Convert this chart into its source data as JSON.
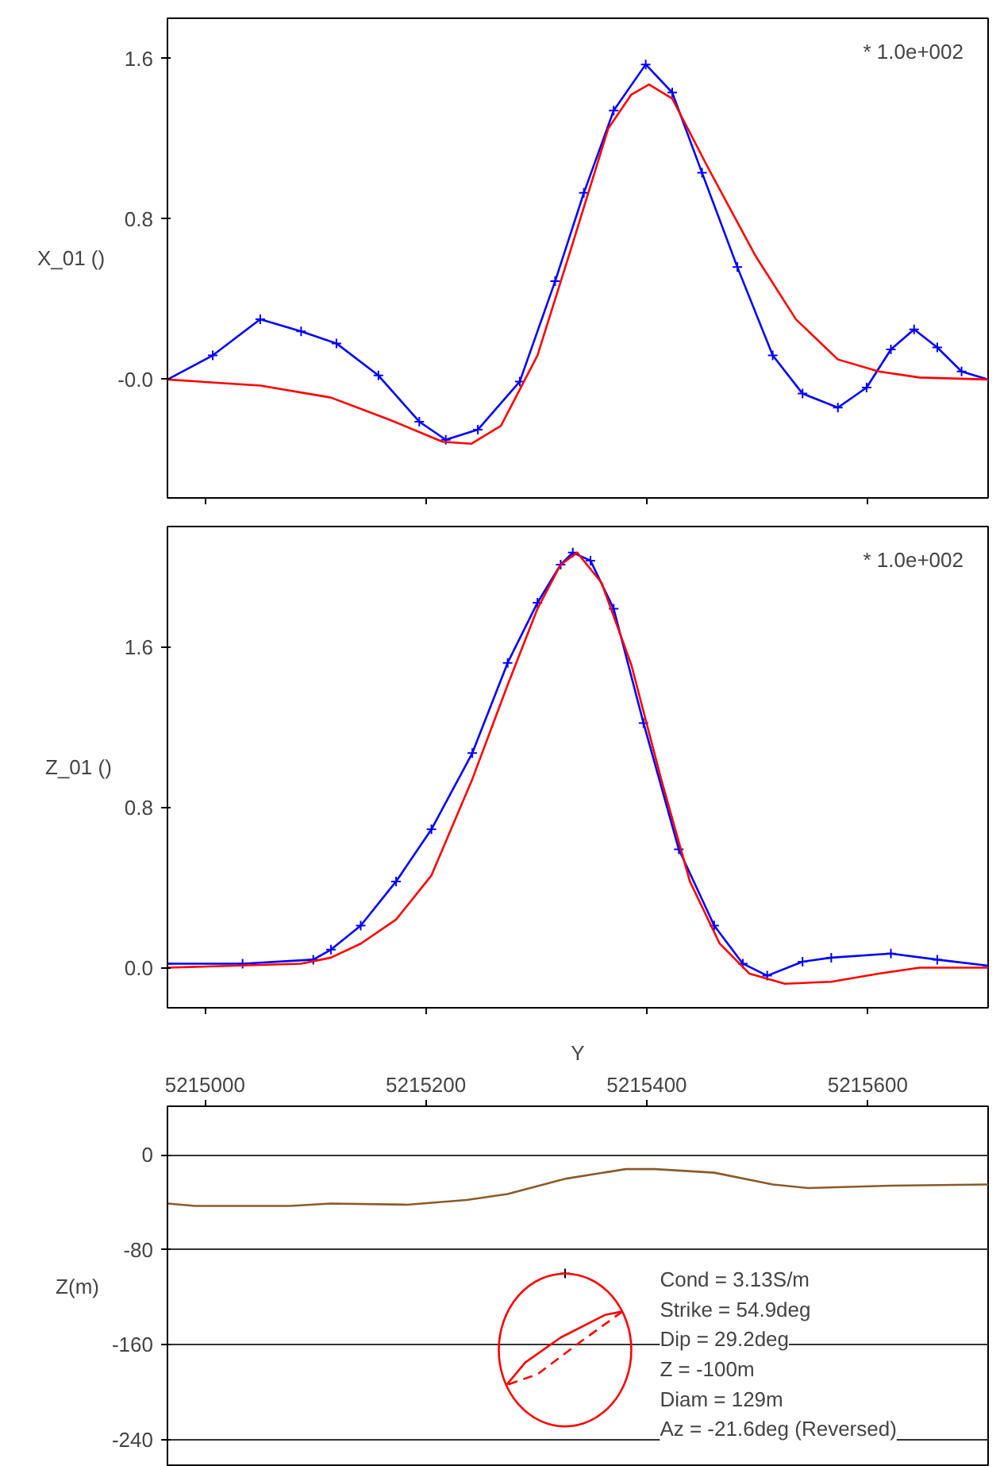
{
  "chart_data": [
    {
      "type": "line",
      "ylabel": "X_01 ()",
      "annotations": [
        "* 1.0e+002"
      ],
      "xlim": [
        5214966,
        5215709
      ],
      "xticks": [
        5215000,
        5215200,
        5215400,
        5215600
      ],
      "ylim": [
        -0.59,
        1.8
      ],
      "yticks": [
        {
          "value": 0,
          "label": "-0.0"
        },
        0.8,
        1.6
      ],
      "tick_labels": "y",
      "series": [
        {
          "color": "#0000ff",
          "marker": "cross",
          "x": [
            5214966,
            5215007,
            5215050,
            5215087,
            5215119,
            5215157,
            5215194,
            5215218,
            5215247,
            5215285,
            5215317,
            5215343,
            5215370,
            5215399,
            5215423,
            5215450,
            5215482,
            5215514,
            5215541,
            5215573,
            5215599,
            5215621,
            5215642,
            5215663,
            5215685,
            5215709
          ],
          "values": [
            0,
            0.12,
            0.3,
            0.24,
            0.18,
            0.02,
            -0.21,
            -0.3,
            -0.25,
            -0.01,
            0.49,
            0.93,
            1.34,
            1.57,
            1.43,
            1.03,
            0.56,
            0.12,
            -0.07,
            -0.14,
            -0.04,
            0.15,
            0.25,
            0.16,
            0.04,
            0
          ]
        },
        {
          "color": "#ff0000",
          "x": [
            5214966,
            5215050,
            5215114,
            5215167,
            5215215,
            5215241,
            5215268,
            5215301,
            5215333,
            5215365,
            5215386,
            5215402,
            5215423,
            5215455,
            5215498,
            5215535,
            5215573,
            5215610,
            5215647,
            5215709
          ],
          "values": [
            0,
            -0.03,
            -0.09,
            -0.2,
            -0.31,
            -0.32,
            -0.23,
            0.12,
            0.68,
            1.25,
            1.42,
            1.47,
            1.4,
            1.06,
            0.62,
            0.3,
            0.1,
            0.04,
            0.01,
            0
          ]
        }
      ]
    },
    {
      "type": "line",
      "ylabel": "Z_01 ()",
      "annotations": [
        "* 1.0e+002"
      ],
      "xlim": [
        5214966,
        5215709
      ],
      "xticks": [
        5215000,
        5215200,
        5215400,
        5215600
      ],
      "ylim": [
        -0.2,
        2.2
      ],
      "yticks": [
        {
          "value": 0,
          "label": "0.0"
        },
        0.8,
        1.6
      ],
      "tick_labels": "y",
      "series": [
        {
          "color": "#0000ff",
          "marker": "cross",
          "x": [
            5214966,
            5215034,
            5215098,
            5215114,
            5215141,
            5215173,
            5215205,
            5215242,
            5215274,
            5215301,
            5215322,
            5215333,
            5215349,
            5215370,
            5215397,
            5215429,
            5215461,
            5215487,
            5215509,
            5215541,
            5215567,
            5215621,
            5215663,
            5215709
          ],
          "values": [
            0.02,
            0.02,
            0.04,
            0.09,
            0.21,
            0.43,
            0.69,
            1.07,
            1.52,
            1.82,
            2.01,
            2.07,
            2.03,
            1.79,
            1.22,
            0.59,
            0.21,
            0.02,
            -0.04,
            0.03,
            0.05,
            0.07,
            0.04,
            0.01
          ]
        },
        {
          "color": "#ff0000",
          "x": [
            5214966,
            5215087,
            5215114,
            5215141,
            5215173,
            5215205,
            5215242,
            5215274,
            5215301,
            5215322,
            5215337,
            5215359,
            5215386,
            5215413,
            5215439,
            5215466,
            5215493,
            5215525,
            5215567,
            5215610,
            5215647,
            5215709
          ],
          "values": [
            0,
            0.02,
            0.05,
            0.12,
            0.24,
            0.46,
            0.94,
            1.41,
            1.79,
            2.01,
            2.07,
            1.92,
            1.51,
            0.94,
            0.43,
            0.12,
            -0.03,
            -0.08,
            -0.07,
            -0.03,
            0,
            0
          ]
        }
      ]
    },
    {
      "type": "line",
      "xlabel": "Y",
      "ylabel": "Z(m)",
      "xlim": [
        5214966,
        5215709
      ],
      "xticks": [
        5215000,
        5215200,
        5215400,
        5215600
      ],
      "ylim": [
        -263,
        41
      ],
      "yticks": [
        0,
        -80,
        -160,
        -240
      ],
      "grid": "y",
      "annotations": [
        "Cond = 3.13S/m",
        "Strike = 54.9deg",
        "Dip = 29.2deg",
        "Z = -100m",
        "Diam = 129m",
        "Az = -21.6deg (Reversed)"
      ],
      "series": [
        {
          "color": "#8b5a2b",
          "x": [
            5214966,
            5214991,
            5215077,
            5215114,
            5215183,
            5215237,
            5215274,
            5215327,
            5215381,
            5215407,
            5215461,
            5215514,
            5215546,
            5215621,
            5215709
          ],
          "values": [
            -41,
            -43,
            -43,
            -41,
            -42,
            -38,
            -33,
            -20,
            -12,
            -12,
            -15,
            -25,
            -28,
            -26,
            -25
          ]
        },
        {
          "color": "#ff0000",
          "x": [
            5215273,
            5215290,
            5215322,
            5215362,
            5215378
          ],
          "values": [
            -194,
            -175,
            -154,
            -135,
            -132
          ]
        },
        {
          "color": "#ff0000",
          "line_style": "dashed",
          "x": [
            5215378,
            5215338,
            5215301,
            5215273
          ],
          "values": [
            -132,
            -159,
            -185,
            -194
          ]
        },
        {
          "type": "scatter",
          "marker": "cross",
          "color": "#000000",
          "x": [
            5215326
          ],
          "values": [
            -100
          ]
        }
      ]
    }
  ]
}
